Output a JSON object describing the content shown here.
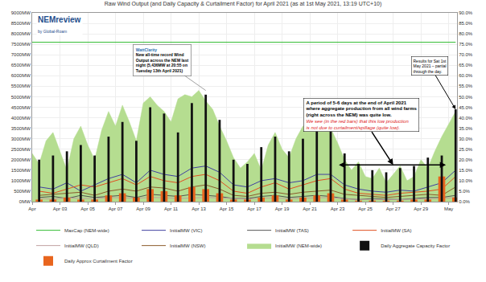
{
  "chart_data": {
    "type": "line",
    "title": "Raw Wind Output (and Daily Capacity & Curtailment Factor) for April 2021 (as at 1st May 2021, 13:19 UTC+10)",
    "logo": {
      "text": "NEMreview",
      "subtext": "by Global-Roam"
    },
    "xlim": [
      0,
      30.6
    ],
    "xticks": [
      {
        "value": 0,
        "label": "Apr"
      },
      {
        "value": 2,
        "label": "Apr 03"
      },
      {
        "value": 4,
        "label": "Apr 05"
      },
      {
        "value": 6,
        "label": "Apr 07"
      },
      {
        "value": 8,
        "label": "Apr 09"
      },
      {
        "value": 10,
        "label": "Apr 11"
      },
      {
        "value": 12,
        "label": "Apr 13"
      },
      {
        "value": 14,
        "label": "Apr 15"
      },
      {
        "value": 16,
        "label": "Apr 17"
      },
      {
        "value": 18,
        "label": "Apr 19"
      },
      {
        "value": 20,
        "label": "Apr 21"
      },
      {
        "value": 22,
        "label": "Apr 23"
      },
      {
        "value": 24,
        "label": "Apr 25"
      },
      {
        "value": 26,
        "label": "Apr 27"
      },
      {
        "value": 28,
        "label": "Apr 29"
      },
      {
        "value": 30,
        "label": "May"
      }
    ],
    "ylim": [
      0,
      9000
    ],
    "yticks": [
      {
        "value": 0,
        "label": "0MW"
      },
      {
        "value": 500,
        "label": "500MW"
      },
      {
        "value": 1000,
        "label": "1000MW"
      },
      {
        "value": 1500,
        "label": "1500MW"
      },
      {
        "value": 2000,
        "label": "2000MW"
      },
      {
        "value": 2500,
        "label": "2500MW"
      },
      {
        "value": 3000,
        "label": "3000MW"
      },
      {
        "value": 3500,
        "label": "3500MW"
      },
      {
        "value": 4000,
        "label": "4000MW"
      },
      {
        "value": 4500,
        "label": "4500MW"
      },
      {
        "value": 5000,
        "label": "5000MW"
      },
      {
        "value": 5500,
        "label": "5500MW"
      },
      {
        "value": 6000,
        "label": "6000MW"
      },
      {
        "value": 6500,
        "label": "6500MW"
      },
      {
        "value": 7000,
        "label": "7000MW"
      },
      {
        "value": 7500,
        "label": "7500MW"
      },
      {
        "value": 8000,
        "label": "8000MW"
      },
      {
        "value": 8500,
        "label": "8500MW"
      },
      {
        "value": 9000,
        "label": "9000MW"
      }
    ],
    "y2lim": [
      0,
      90
    ],
    "y2ticks": [
      {
        "value": 0,
        "label": "0.0%"
      },
      {
        "value": 5,
        "label": "5.0%"
      },
      {
        "value": 10,
        "label": "10.0%"
      },
      {
        "value": 15,
        "label": "15.0%"
      },
      {
        "value": 20,
        "label": "20.0%"
      },
      {
        "value": 25,
        "label": "25.0%"
      },
      {
        "value": 30,
        "label": "30.0%"
      },
      {
        "value": 35,
        "label": "35.0%"
      },
      {
        "value": 40,
        "label": "40.0%"
      },
      {
        "value": 45,
        "label": "45.0%"
      },
      {
        "value": 50,
        "label": "50.0%"
      },
      {
        "value": 55,
        "label": "55.0%"
      },
      {
        "value": 60,
        "label": "60.0%"
      },
      {
        "value": 65,
        "label": "65.0%"
      },
      {
        "value": 70,
        "label": "70.0%"
      },
      {
        "value": 75,
        "label": "75.0%"
      },
      {
        "value": 80,
        "label": "80.0%"
      },
      {
        "value": 85,
        "label": "85.0%"
      },
      {
        "value": 90,
        "label": "90.0%"
      }
    ],
    "grid": true,
    "legend": "bottom",
    "series": [
      {
        "name": "MaxCap (NEM-wide)",
        "type": "line",
        "color": "#33bb33",
        "x": [
          0,
          30.5
        ],
        "values": [
          7600,
          7600
        ]
      },
      {
        "name": "InitialMW (VIC)",
        "type": "line",
        "color": "#4040a0",
        "x": [
          0.5,
          1.5,
          2.5,
          3.5,
          4.5,
          5.5,
          6.5,
          7.5,
          8.5,
          9.5,
          10.5,
          11.5,
          12.5,
          13.5,
          14.5,
          15.5,
          16.5,
          17.5,
          18.5,
          19.5,
          20.5,
          21.5,
          22.5,
          23.5,
          24.5,
          25.5,
          26.5,
          27.5,
          28.5,
          29.5,
          30.5
        ],
        "values": [
          700,
          600,
          900,
          500,
          800,
          1100,
          1300,
          900,
          1500,
          1300,
          1200,
          1600,
          1700,
          1400,
          800,
          700,
          1000,
          1100,
          900,
          1000,
          1300,
          1300,
          800,
          600,
          500,
          450,
          550,
          500,
          700,
          900,
          1500
        ]
      },
      {
        "name": "InitialMW (TAS)",
        "type": "line",
        "color": "#555555",
        "x": [
          0.5,
          1.5,
          2.5,
          3.5,
          4.5,
          5.5,
          6.5,
          7.5,
          8.5,
          9.5,
          10.5,
          11.5,
          12.5,
          13.5,
          14.5,
          15.5,
          16.5,
          17.5,
          18.5,
          19.5,
          20.5,
          21.5,
          22.5,
          23.5,
          24.5,
          25.5,
          26.5,
          27.5,
          28.5,
          29.5,
          30.5
        ],
        "values": [
          200,
          250,
          150,
          300,
          200,
          250,
          300,
          200,
          350,
          300,
          250,
          350,
          300,
          250,
          150,
          150,
          250,
          300,
          200,
          250,
          300,
          250,
          150,
          100,
          150,
          120,
          100,
          150,
          200,
          200,
          300
        ]
      },
      {
        "name": "InitialMW (SA)",
        "type": "line",
        "color": "#e05020",
        "x": [
          0.5,
          1.5,
          2.5,
          3.5,
          4.5,
          5.5,
          6.5,
          7.5,
          8.5,
          9.5,
          10.5,
          11.5,
          12.5,
          13.5,
          14.5,
          15.5,
          16.5,
          17.5,
          18.5,
          19.5,
          20.5,
          21.5,
          22.5,
          23.5,
          24.5,
          25.5,
          26.5,
          27.5,
          28.5,
          29.5,
          30.5
        ],
        "values": [
          500,
          400,
          600,
          800,
          700,
          900,
          1100,
          800,
          1200,
          1000,
          900,
          1200,
          1300,
          1000,
          500,
          400,
          700,
          900,
          600,
          800,
          1000,
          1100,
          600,
          400,
          350,
          300,
          400,
          450,
          500,
          600,
          1200
        ]
      },
      {
        "name": "InitialMW (QLD)",
        "type": "line",
        "color": "#c0a0a0",
        "x": [
          0.5,
          1.5,
          2.5,
          3.5,
          4.5,
          5.5,
          6.5,
          7.5,
          8.5,
          9.5,
          10.5,
          11.5,
          12.5,
          13.5,
          14.5,
          15.5,
          16.5,
          17.5,
          18.5,
          19.5,
          20.5,
          21.5,
          22.5,
          23.5,
          24.5,
          25.5,
          26.5,
          27.5,
          28.5,
          29.5,
          30.5
        ],
        "values": [
          150,
          120,
          180,
          160,
          140,
          200,
          180,
          160,
          200,
          190,
          150,
          170,
          200,
          180,
          150,
          120,
          160,
          170,
          140,
          150,
          180,
          200,
          130,
          110,
          100,
          90,
          100,
          120,
          140,
          150,
          200
        ]
      },
      {
        "name": "InitialMW (NSW)",
        "type": "line",
        "color": "#8b5a2b",
        "x": [
          0.5,
          1.5,
          2.5,
          3.5,
          4.5,
          5.5,
          6.5,
          7.5,
          8.5,
          9.5,
          10.5,
          11.5,
          12.5,
          13.5,
          14.5,
          15.5,
          16.5,
          17.5,
          18.5,
          19.5,
          20.5,
          21.5,
          22.5,
          23.5,
          24.5,
          25.5,
          26.5,
          27.5,
          28.5,
          29.5,
          30.5
        ],
        "values": [
          300,
          350,
          400,
          450,
          300,
          500,
          600,
          500,
          700,
          650,
          500,
          700,
          800,
          600,
          300,
          250,
          400,
          450,
          350,
          450,
          500,
          550,
          350,
          300,
          250,
          200,
          250,
          300,
          350,
          300,
          700
        ]
      },
      {
        "name": "InitialMW (NEM-wide)",
        "type": "area",
        "color": "#b5dd90",
        "x": [
          0,
          0.5,
          1,
          1.5,
          2,
          2.5,
          3,
          3.5,
          4,
          4.5,
          5,
          5.5,
          6,
          6.5,
          7,
          7.5,
          8,
          8.5,
          9,
          9.5,
          10,
          10.5,
          11,
          11.5,
          12,
          12.5,
          13,
          13.5,
          14,
          14.5,
          15,
          15.5,
          16,
          16.5,
          17,
          17.5,
          18,
          18.5,
          19,
          19.5,
          20,
          20.5,
          21,
          21.5,
          22,
          22.5,
          23,
          23.5,
          24,
          24.5,
          25,
          25.5,
          26,
          26.5,
          27,
          27.5,
          28,
          28.5,
          29,
          29.5,
          30,
          30.5
        ],
        "values": [
          2300,
          1800,
          2900,
          3300,
          2400,
          1500,
          3000,
          3600,
          2700,
          2000,
          3400,
          4300,
          3600,
          4600,
          3800,
          2900,
          4700,
          5000,
          4600,
          4300,
          3800,
          4900,
          5100,
          5000,
          5300,
          4800,
          4400,
          3600,
          2900,
          2100,
          1600,
          1900,
          2300,
          1500,
          2700,
          3300,
          2500,
          2100,
          3000,
          3600,
          3900,
          3300,
          4100,
          3500,
          2800,
          2000,
          1500,
          1900,
          1200,
          1100,
          1600,
          900,
          1300,
          1700,
          1000,
          1200,
          2000,
          1600,
          2400,
          3100,
          3700,
          4300
        ]
      },
      {
        "name": "Daily Aggregate Capacity Factor",
        "type": "bar",
        "axis": "y2",
        "color": "#111111",
        "x": [
          0.5,
          1.5,
          2.5,
          3.5,
          4.5,
          5.5,
          6.5,
          7.5,
          8.5,
          9.5,
          10.5,
          11.5,
          12.5,
          13.5,
          14.5,
          15.5,
          16.5,
          17.5,
          18.5,
          19.5,
          20.5,
          21.5,
          22.5,
          23.5,
          24.5,
          25.5,
          26.5,
          27.5,
          28.5,
          29.5,
          30.5
        ],
        "values": [
          20,
          22,
          24,
          27,
          22,
          31,
          38,
          29,
          45,
          42,
          33,
          47,
          51,
          39,
          20,
          18,
          26,
          31,
          24,
          30,
          37,
          38,
          23,
          18,
          15,
          14,
          16,
          17,
          21,
          22,
          44
        ]
      },
      {
        "name": "Daily Approx Curtailment Factor",
        "type": "bar",
        "axis": "y2",
        "color": "#e8651e",
        "x": [
          0.5,
          1.5,
          2.5,
          3.5,
          4.5,
          5.5,
          6.5,
          7.5,
          8.5,
          9.5,
          10.5,
          11.5,
          12.5,
          13.5,
          14.5,
          15.5,
          16.5,
          17.5,
          18.5,
          19.5,
          20.5,
          21.5,
          22.5,
          23.5,
          24.5,
          25.5,
          26.5,
          27.5,
          28.5,
          29.5,
          30.5
        ],
        "values": [
          1,
          1,
          2,
          1,
          1,
          3,
          4,
          2,
          6,
          5,
          3,
          7,
          6,
          4,
          1,
          1,
          2,
          3,
          1,
          2,
          3,
          4,
          1,
          0.5,
          0.5,
          0.5,
          0.5,
          1,
          1,
          12,
          2
        ]
      }
    ],
    "annotations": [
      {
        "text": "A period of 5-6 days at the end of April 2021 where aggregate production from all wind farms (right across the NEM) was quite low.",
        "color": "#000000"
      },
      {
        "text": "We see (in the red bars) that this low production is not due to curtailment/spillage (quite low).",
        "color": "#e02020"
      },
      {
        "text": "Results for Sat 1st May 2021 – partial through the day.",
        "color": "#000000"
      },
      {
        "text": "WattClarity",
        "color": "#2a6fb0"
      },
      {
        "text": "New all-time record Wind Output across the NEM last night (5,436MW at 20:55 on Tuesday 13th April 2021)",
        "color": "#000000"
      }
    ]
  }
}
